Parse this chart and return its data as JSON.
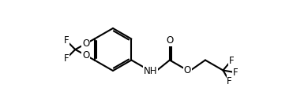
{
  "background_color": "#ffffff",
  "line_color": "#000000",
  "line_width": 1.5,
  "font_size": 8.5,
  "figsize": [
    3.9,
    1.26
  ],
  "dpi": 100,
  "xlim": [
    0,
    390
  ],
  "ylim": [
    0,
    126
  ]
}
